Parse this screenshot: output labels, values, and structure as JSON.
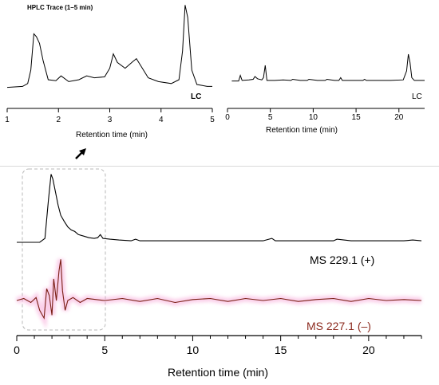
{
  "chart_data": [
    {
      "type": "line",
      "title": "HPLC Trace (1–5 min)",
      "xlabel": "Retention time (min)",
      "ylabel": "",
      "xlim": [
        1,
        5
      ],
      "xticks": [
        1,
        2,
        3,
        4,
        5
      ],
      "series": [
        {
          "name": "LC",
          "color": "#000000",
          "x": [
            1.0,
            1.3,
            1.4,
            1.46,
            1.52,
            1.57,
            1.63,
            1.7,
            1.8,
            1.95,
            2.05,
            2.2,
            2.4,
            2.55,
            2.7,
            2.9,
            3.0,
            3.07,
            3.15,
            3.3,
            3.45,
            3.52,
            3.6,
            3.75,
            3.95,
            4.2,
            4.35,
            4.42,
            4.47,
            4.52,
            4.6,
            4.7,
            4.9,
            5.0
          ],
          "y": [
            0.02,
            0.03,
            0.06,
            0.2,
            0.58,
            0.55,
            0.48,
            0.3,
            0.1,
            0.09,
            0.14,
            0.08,
            0.1,
            0.14,
            0.12,
            0.13,
            0.22,
            0.37,
            0.28,
            0.22,
            0.29,
            0.32,
            0.25,
            0.12,
            0.08,
            0.06,
            0.1,
            0.4,
            0.88,
            0.75,
            0.2,
            0.05,
            0.03,
            0.03
          ]
        }
      ]
    },
    {
      "type": "line",
      "title": "",
      "xlabel": "Retention time (min)",
      "ylabel": "",
      "xlim": [
        0,
        23
      ],
      "xticks": [
        0,
        5,
        10,
        15,
        20
      ],
      "series": [
        {
          "name": "LC",
          "color": "#000000",
          "x": [
            0.5,
            1.3,
            1.5,
            1.7,
            2.5,
            3.0,
            3.2,
            3.5,
            4.0,
            4.2,
            4.4,
            4.6,
            5.5,
            6.5,
            7.4,
            7.6,
            8.5,
            9.3,
            9.5,
            10.5,
            11.4,
            11.6,
            12.5,
            13.0,
            13.2,
            13.4,
            14.5,
            15.8,
            16.0,
            16.2,
            17.5,
            19.0,
            20.5,
            20.9,
            21.1,
            21.3,
            21.5,
            21.8,
            22.5,
            23.0
          ],
          "y": [
            0.02,
            0.02,
            0.12,
            0.03,
            0.04,
            0.05,
            0.1,
            0.06,
            0.04,
            0.08,
            0.3,
            0.03,
            0.03,
            0.04,
            0.03,
            0.05,
            0.03,
            0.03,
            0.05,
            0.03,
            0.03,
            0.05,
            0.03,
            0.03,
            0.08,
            0.03,
            0.03,
            0.03,
            0.05,
            0.03,
            0.03,
            0.03,
            0.04,
            0.2,
            0.5,
            0.35,
            0.08,
            0.03,
            0.03,
            0.03
          ]
        }
      ]
    },
    {
      "type": "line",
      "title": "",
      "xlabel": "Retention time (min)",
      "ylabel": "",
      "xlim": [
        0,
        23
      ],
      "xticks": [
        0,
        5,
        10,
        15,
        20
      ],
      "series": [
        {
          "name": "MS 229.1 (+)",
          "color": "#000000",
          "x": [
            0.0,
            1.3,
            1.6,
            1.8,
            1.95,
            2.05,
            2.2,
            2.35,
            2.5,
            2.7,
            2.9,
            3.1,
            3.3,
            3.5,
            3.8,
            4.1,
            4.4,
            4.6,
            4.75,
            4.9,
            5.3,
            5.8,
            6.5,
            6.75,
            7.0,
            8.0,
            9.0,
            10.0,
            11.0,
            12.0,
            13.0,
            14.0,
            14.5,
            14.7,
            15.0,
            16.0,
            17.0,
            18.0,
            18.2,
            19.0,
            20.0,
            21.0,
            22.0,
            22.5,
            23.0
          ],
          "y": [
            0.0,
            0.0,
            0.05,
            0.55,
            0.88,
            0.82,
            0.65,
            0.48,
            0.35,
            0.27,
            0.2,
            0.16,
            0.14,
            0.1,
            0.08,
            0.06,
            0.05,
            0.06,
            0.1,
            0.05,
            0.04,
            0.03,
            0.02,
            0.04,
            0.02,
            0.02,
            0.02,
            0.02,
            0.02,
            0.02,
            0.02,
            0.02,
            0.05,
            0.02,
            0.02,
            0.02,
            0.02,
            0.02,
            0.04,
            0.02,
            0.02,
            0.02,
            0.02,
            0.03,
            0.02
          ]
        },
        {
          "name": "MS 227.1 (–)",
          "color": "#7a1f14",
          "x": [
            0.0,
            0.4,
            0.8,
            1.1,
            1.3,
            1.55,
            1.7,
            1.85,
            2.0,
            2.1,
            2.25,
            2.4,
            2.5,
            2.6,
            2.75,
            2.9,
            3.2,
            3.6,
            4.0,
            5.0,
            6.0,
            7.0,
            8.0,
            9.0,
            10.0,
            11.0,
            12.0,
            13.0,
            14.0,
            15.0,
            16.0,
            17.0,
            18.0,
            19.0,
            20.0,
            21.0,
            22.0,
            23.0
          ],
          "y": [
            0.0,
            0.02,
            -0.02,
            0.03,
            -0.1,
            -0.18,
            0.12,
            0.05,
            -0.15,
            0.22,
            0.0,
            0.3,
            0.42,
            0.1,
            -0.1,
            0.0,
            0.03,
            -0.02,
            0.02,
            0.0,
            0.02,
            -0.01,
            0.02,
            -0.02,
            0.01,
            0.02,
            -0.01,
            0.02,
            0.0,
            0.02,
            -0.01,
            0.01,
            0.02,
            -0.01,
            0.02,
            0.0,
            0.01,
            0.0
          ]
        }
      ]
    }
  ],
  "labels": {
    "lc_inset": "LC",
    "lc_full": "LC",
    "ms_pos": "MS 229.1 (+)",
    "ms_neg": "MS 227.1 (–)"
  }
}
